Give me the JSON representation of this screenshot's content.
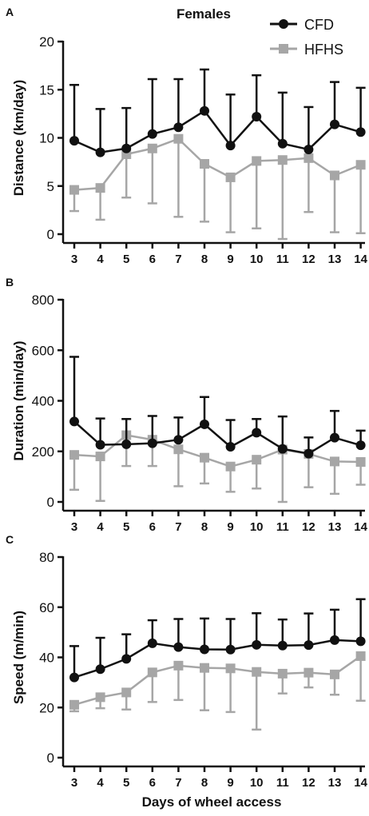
{
  "figure": {
    "title": "Females",
    "xlabel": "Days of wheel access",
    "legend": [
      {
        "name": "CFD",
        "color": "#111111",
        "marker": "circle"
      },
      {
        "name": "HFHS",
        "color": "#a6a6a6",
        "marker": "square"
      }
    ]
  },
  "chart_data": [
    {
      "type": "line",
      "panel_label": "A",
      "ylabel": "Distance (km/day)",
      "x": [
        3,
        4,
        5,
        6,
        7,
        8,
        9,
        10,
        11,
        12,
        13,
        14
      ],
      "ylim": [
        0,
        20
      ],
      "yticks": [
        0,
        5,
        10,
        15,
        20
      ],
      "grid": false,
      "legend_position": "top-right",
      "series": [
        {
          "name": "CFD",
          "color": "#111111",
          "marker": "circle",
          "values": [
            9.7,
            8.5,
            8.9,
            10.4,
            11.1,
            12.8,
            9.2,
            12.2,
            9.4,
            8.8,
            11.4,
            10.6
          ],
          "error_upper": [
            5.8,
            4.5,
            4.2,
            5.7,
            5.0,
            4.3,
            5.3,
            4.3,
            5.3,
            4.4,
            4.4,
            4.6
          ]
        },
        {
          "name": "HFHS",
          "color": "#a6a6a6",
          "marker": "square",
          "values": [
            4.6,
            4.8,
            8.3,
            8.9,
            9.9,
            7.3,
            5.9,
            7.6,
            7.7,
            7.9,
            6.1,
            7.2
          ],
          "error_lower": [
            2.2,
            3.3,
            4.5,
            5.7,
            8.1,
            6.0,
            5.7,
            7.0,
            8.2,
            5.6,
            5.9,
            7.1
          ]
        }
      ]
    },
    {
      "type": "line",
      "panel_label": "B",
      "ylabel": "Duration (min/day)",
      "x": [
        3,
        4,
        5,
        6,
        7,
        8,
        9,
        10,
        11,
        12,
        13,
        14
      ],
      "ylim": [
        0,
        800
      ],
      "yticks": [
        0,
        200,
        400,
        600,
        800
      ],
      "grid": false,
      "series": [
        {
          "name": "CFD",
          "color": "#111111",
          "marker": "circle",
          "values": [
            318,
            226,
            228,
            232,
            246,
            307,
            218,
            274,
            210,
            191,
            254,
            224
          ],
          "error_upper": [
            256,
            104,
            100,
            108,
            88,
            108,
            106,
            54,
            128,
            64,
            106,
            58
          ]
        },
        {
          "name": "HFHS",
          "color": "#a6a6a6",
          "marker": "square",
          "values": [
            186,
            180,
            264,
            246,
            208,
            175,
            140,
            167,
            207,
            190,
            160,
            158
          ],
          "error_lower": [
            138,
            176,
            122,
            104,
            146,
            102,
            100,
            114,
            207,
            132,
            128,
            90
          ]
        }
      ]
    },
    {
      "type": "line",
      "panel_label": "C",
      "ylabel": "Speed (m/min)",
      "x": [
        3,
        4,
        5,
        6,
        7,
        8,
        9,
        10,
        11,
        12,
        13,
        14
      ],
      "ylim": [
        0,
        80
      ],
      "yticks": [
        0,
        20,
        40,
        60,
        80
      ],
      "grid": false,
      "series": [
        {
          "name": "CFD",
          "color": "#111111",
          "marker": "circle",
          "values": [
            32.0,
            35.3,
            39.4,
            45.6,
            44.1,
            43.2,
            43.1,
            45.0,
            44.7,
            44.9,
            46.9,
            46.4
          ],
          "error_upper": [
            12.5,
            12.5,
            9.8,
            9.2,
            11.2,
            12.3,
            12.2,
            12.6,
            10.4,
            12.6,
            12.1,
            16.8
          ]
        },
        {
          "name": "HFHS",
          "color": "#a6a6a6",
          "marker": "square",
          "values": [
            21.1,
            24.1,
            26.0,
            34.0,
            36.7,
            35.8,
            35.6,
            34.2,
            33.5,
            33.9,
            33.2,
            40.5
          ],
          "error_lower": [
            2.6,
            4.4,
            6.8,
            11.8,
            13.7,
            16.9,
            17.4,
            23.0,
            7.9,
            5.9,
            8.1,
            17.8
          ]
        }
      ]
    }
  ]
}
